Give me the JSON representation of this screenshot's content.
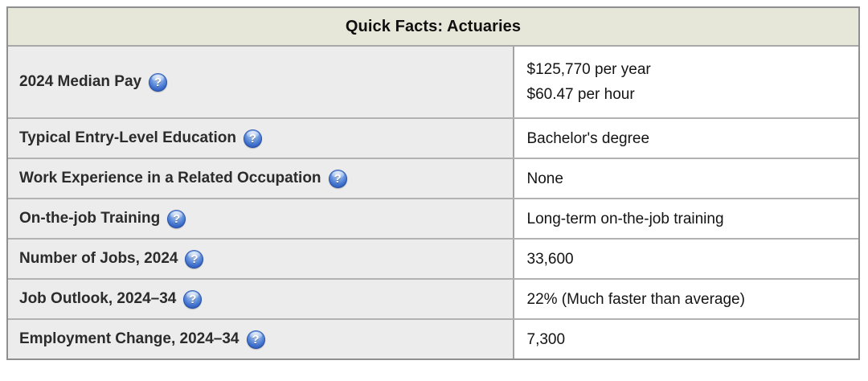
{
  "table": {
    "title": "Quick Facts: Actuaries",
    "rows": [
      {
        "label": "2024 Median Pay",
        "values": [
          "$125,770 per year",
          "$60.47 per hour"
        ]
      },
      {
        "label": "Typical Entry-Level Education",
        "values": [
          "Bachelor's degree"
        ]
      },
      {
        "label": "Work Experience in a Related Occupation",
        "values": [
          "None"
        ]
      },
      {
        "label": "On-the-job Training",
        "values": [
          "Long-term on-the-job training"
        ]
      },
      {
        "label": "Number of Jobs, 2024",
        "values": [
          "33,600"
        ]
      },
      {
        "label": "Job Outlook, 2024–34",
        "values": [
          "22% (Much faster than average)"
        ]
      },
      {
        "label": "Employment Change, 2024–34",
        "values": [
          "7,300"
        ]
      }
    ]
  },
  "icons": {
    "help_glyph": "?"
  },
  "colors": {
    "header_background": "#e7e7d9",
    "label_cell_background": "#ececec",
    "value_cell_background": "#ffffff",
    "outer_border": "#8f8f8f",
    "inner_border": "#b2b2b2",
    "help_icon_blue": "#3f70cc",
    "text": "#141414"
  }
}
